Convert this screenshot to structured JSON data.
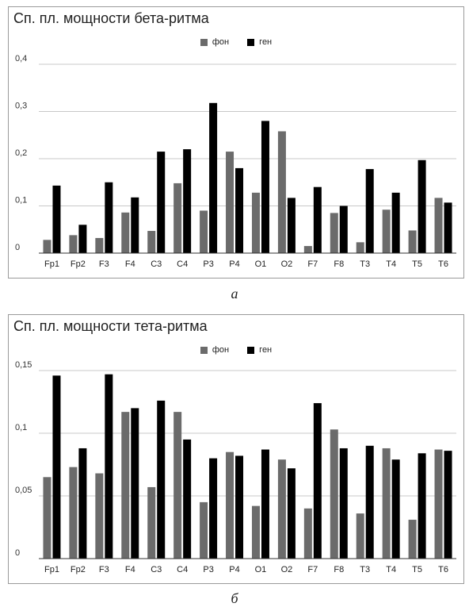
{
  "legend": {
    "series1": "фон",
    "series2": "ген"
  },
  "colors": {
    "series1": "#6b6b6b",
    "series2": "#000000",
    "grid": "#c8c8c8",
    "axis": "#333333"
  },
  "captions": {
    "a": "а",
    "b": "б"
  },
  "chart_data": [
    {
      "type": "bar",
      "title": "Сп. пл. мощности бета-ритма",
      "categories": [
        "Fp1",
        "Fp2",
        "F3",
        "F4",
        "C3",
        "C4",
        "P3",
        "P4",
        "O1",
        "O2",
        "F7",
        "F8",
        "T3",
        "T4",
        "T5",
        "T6"
      ],
      "series": [
        {
          "name": "фон",
          "values": [
            0.028,
            0.038,
            0.032,
            0.086,
            0.047,
            0.148,
            0.09,
            0.215,
            0.128,
            0.258,
            0.015,
            0.085,
            0.023,
            0.092,
            0.048,
            0.117
          ]
        },
        {
          "name": "ген",
          "values": [
            0.143,
            0.06,
            0.15,
            0.118,
            0.215,
            0.22,
            0.318,
            0.18,
            0.28,
            0.117,
            0.14,
            0.1,
            0.178,
            0.128,
            0.197,
            0.107
          ]
        }
      ],
      "ylim": [
        0,
        0.4
      ],
      "yticks": [
        0,
        0.1,
        0.2,
        0.3,
        0.4
      ],
      "ytick_labels": [
        "0",
        "0,1",
        "0,2",
        "0,3",
        "0,4"
      ],
      "grid": true,
      "legend_position": "top-center"
    },
    {
      "type": "bar",
      "title": "Сп. пл. мощности тета-ритма",
      "categories": [
        "Fp1",
        "Fp2",
        "F3",
        "F4",
        "C3",
        "C4",
        "P3",
        "P4",
        "O1",
        "O2",
        "F7",
        "F8",
        "T3",
        "T4",
        "T5",
        "T6"
      ],
      "series": [
        {
          "name": "фон",
          "values": [
            0.065,
            0.073,
            0.068,
            0.117,
            0.057,
            0.117,
            0.045,
            0.085,
            0.042,
            0.079,
            0.04,
            0.103,
            0.036,
            0.088,
            0.031,
            0.087
          ]
        },
        {
          "name": "ген",
          "values": [
            0.146,
            0.088,
            0.147,
            0.12,
            0.126,
            0.095,
            0.08,
            0.082,
            0.087,
            0.072,
            0.124,
            0.088,
            0.09,
            0.079,
            0.084,
            0.086
          ]
        }
      ],
      "ylim": [
        0,
        0.15
      ],
      "yticks": [
        0,
        0.05,
        0.1,
        0.15
      ],
      "ytick_labels": [
        "0",
        "0,05",
        "0,1",
        "0,15"
      ],
      "grid": true,
      "legend_position": "top-center"
    }
  ]
}
